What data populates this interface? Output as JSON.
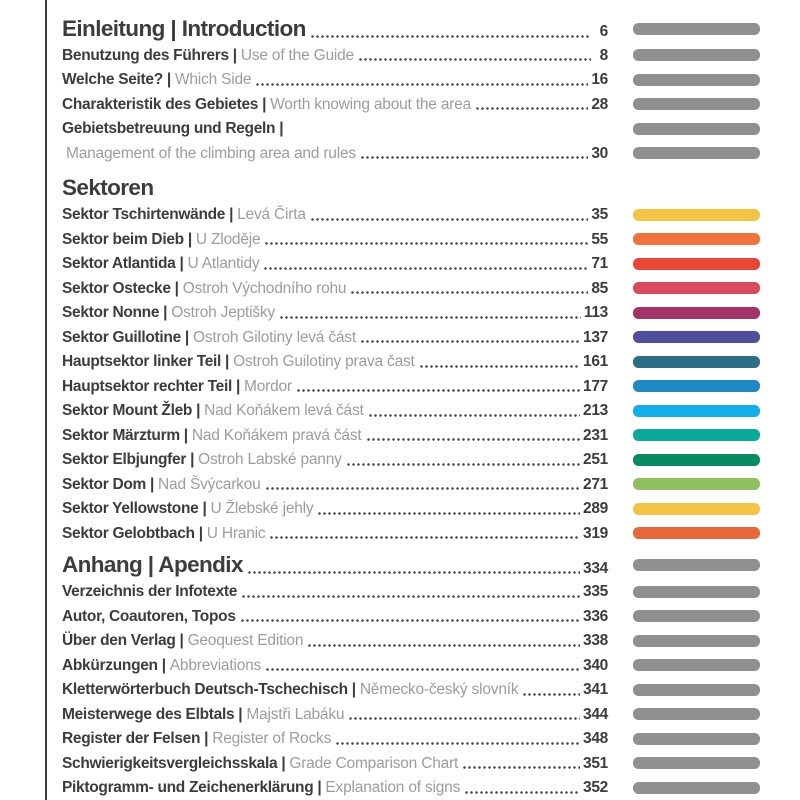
{
  "page": {
    "kind": "table-of-contents",
    "rule_color": "#3d3d3d",
    "colors": {
      "primary_text": "#3c3c3c",
      "secondary_text": "#9c9c9c",
      "leader_dots": "#4b4b4b",
      "gray_bar": "#909090"
    }
  },
  "sections": [
    {
      "id": "einleitung",
      "heading": {
        "text": "Einleitung | Introduction",
        "page": "6",
        "bar": "#909090"
      },
      "rows": [
        {
          "primary": "Benutzung des Führers |",
          "secondary": "Use of the Guide",
          "page": "8",
          "bar": "#909090"
        },
        {
          "primary": "Welche Seite? |",
          "secondary": "Which Side",
          "page": "16",
          "bar": "#909090"
        },
        {
          "primary": "Charakteristik des Gebietes |",
          "secondary": "Worth knowing about the area",
          "page": "28",
          "bar": "#909090"
        },
        {
          "primary": "Gebietsbetreuung und Regeln |",
          "secondary": "",
          "page": "",
          "bar": "#909090"
        },
        {
          "primary": "",
          "secondary": "Management of the climbing area and rules",
          "page": "30",
          "bar": "#909090"
        }
      ]
    },
    {
      "id": "sektoren",
      "heading": {
        "text": "Sektoren",
        "page": "",
        "bar": ""
      },
      "rows": [
        {
          "primary": "Sektor Tschirtenwände |",
          "secondary": "Levá Čirta",
          "page": "35",
          "bar": "#F6C445"
        },
        {
          "primary": "Sektor beim Dieb |",
          "secondary": "U Zloděje",
          "page": "55",
          "bar": "#F1733B"
        },
        {
          "primary": "Sektor Atlantida |",
          "secondary": "U Atlantidy",
          "page": "71",
          "bar": "#EA4537"
        },
        {
          "primary": "Sektor Ostecke |",
          "secondary": "Ostroh Východního rohu",
          "page": "85",
          "bar": "#D84A5F"
        },
        {
          "primary": "Sektor Nonne |",
          "secondary": "Ostroh Jeptišky",
          "page": "113",
          "bar": "#A43367"
        },
        {
          "primary": "Sektor Guillotine |",
          "secondary": "Ostroh Gilotiny levá část",
          "page": "137",
          "bar": "#4F4F9F"
        },
        {
          "primary": "Hauptsektor linker Teil |",
          "secondary": "Ostroh Guilotiny prava čast",
          "page": "161",
          "bar": "#2A6E87"
        },
        {
          "primary": "Hauptsektor rechter Teil |",
          "secondary": "Mordor",
          "page": "177",
          "bar": "#1F88C5"
        },
        {
          "primary": "Sektor Mount Žleb |",
          "secondary": "Nad Koňákem levá část",
          "page": "213",
          "bar": "#12AEE9"
        },
        {
          "primary": "Sektor Märzturm |",
          "secondary": "Nad Koňákem pravá část",
          "page": "231",
          "bar": "#0BA89C"
        },
        {
          "primary": "Sektor Elbjungfer |",
          "secondary": "Ostroh Labské panny",
          "page": "251",
          "bar": "#088A62"
        },
        {
          "primary": "Sektor Dom |",
          "secondary": "Nad Švýcarkou",
          "page": "271",
          "bar": "#90C05D"
        },
        {
          "primary": "Sektor Yellowstone |",
          "secondary": "U Žlebské jehly",
          "page": "289",
          "bar": "#F6C445"
        },
        {
          "primary": "Sektor Gelobtbach |",
          "secondary": "U Hranic",
          "page": "319",
          "bar": "#E9683A"
        }
      ]
    },
    {
      "id": "anhang",
      "heading": {
        "text": "Anhang | Apendix",
        "page": "334",
        "bar": "#909090"
      },
      "rows": [
        {
          "primary": "Verzeichnis der Infotexte",
          "secondary": "",
          "page": "335",
          "bar": "#909090"
        },
        {
          "primary": "Autor, Coautoren, Topos",
          "secondary": "",
          "page": "336",
          "bar": "#909090"
        },
        {
          "primary": "Über den Verlag |",
          "secondary": "Geoquest Edition",
          "page": "338",
          "bar": "#909090"
        },
        {
          "primary": "Abkürzungen |",
          "secondary": "Abbreviations",
          "page": "340",
          "bar": "#909090"
        },
        {
          "primary": "Kletterwörterbuch Deutsch-Tschechisch |",
          "secondary": "Německo-český slovník",
          "page": "341",
          "bar": "#909090"
        },
        {
          "primary": "Meisterwege des Elbtals |",
          "secondary": "Majstři Labáku",
          "page": "344",
          "bar": "#909090"
        },
        {
          "primary": "Register der Felsen |",
          "secondary": "Register of Rocks",
          "page": "348",
          "bar": "#909090"
        },
        {
          "primary": "Schwierigkeitsvergleichsskala |",
          "secondary": "Grade Comparison Chart",
          "page": "351",
          "bar": "#909090"
        },
        {
          "primary": "Piktogramm- und Zeichenerklärung |",
          "secondary": "Explanation of signs",
          "page": "352",
          "bar": "#909090"
        }
      ]
    }
  ]
}
